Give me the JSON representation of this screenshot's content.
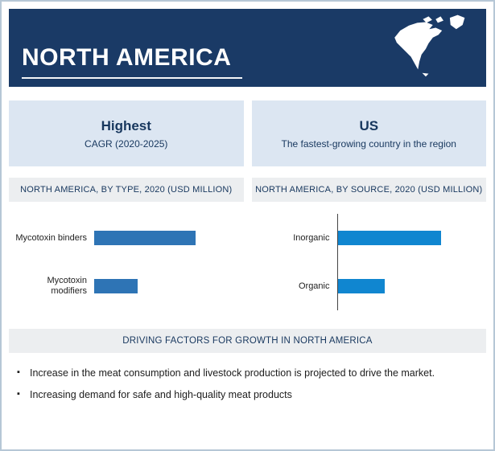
{
  "header": {
    "title": "NORTH AMERICA"
  },
  "highlight_panels": [
    {
      "title": "Highest",
      "subtitle": "CAGR (2020-2025)"
    },
    {
      "title": "US",
      "subtitle": "The fastest-growing country in the region"
    }
  ],
  "chart_data": [
    {
      "type": "bar",
      "orientation": "horizontal",
      "title": "NORTH AMERICA, BY TYPE, 2020 (USD MILLION)",
      "categories": [
        "Mycotoxin binders",
        "Mycotoxin modifiers"
      ],
      "values": [
        70,
        30
      ],
      "xlim": [
        0,
        100
      ],
      "units": "USD Million (axis values not labeled; bar lengths estimated relative)",
      "bar_color": "#2e74b5",
      "axis_line": false,
      "grid": false,
      "legend": "none"
    },
    {
      "type": "bar",
      "orientation": "horizontal",
      "title": "NORTH AMERICA, BY SOURCE, 2020 (USD MILLION)",
      "categories": [
        "Inorganic",
        "Organic"
      ],
      "values": [
        72,
        33
      ],
      "xlim": [
        0,
        100
      ],
      "units": "USD Million (axis values not labeled; bar lengths estimated relative)",
      "bar_color": "#1086d0",
      "axis_line": true,
      "grid": false,
      "legend": "none"
    }
  ],
  "driving_factors": {
    "header": "DRIVING FACTORS FOR GROWTH IN NORTH AMERICA",
    "bullets": [
      "Increase in the meat consumption and livestock production is projected to drive the market.",
      "Increasing demand for safe and high-quality meat products"
    ]
  },
  "icons": {
    "map": "north-america-map-icon"
  },
  "colors": {
    "header_bg": "#1a3a66",
    "panel_bg": "#dce6f2",
    "band_bg": "#eceef0",
    "accent_navy": "#17375e",
    "page_border": "#b6c7d6",
    "bar_blue_left": "#2e74b5",
    "bar_blue_right": "#1086d0"
  }
}
